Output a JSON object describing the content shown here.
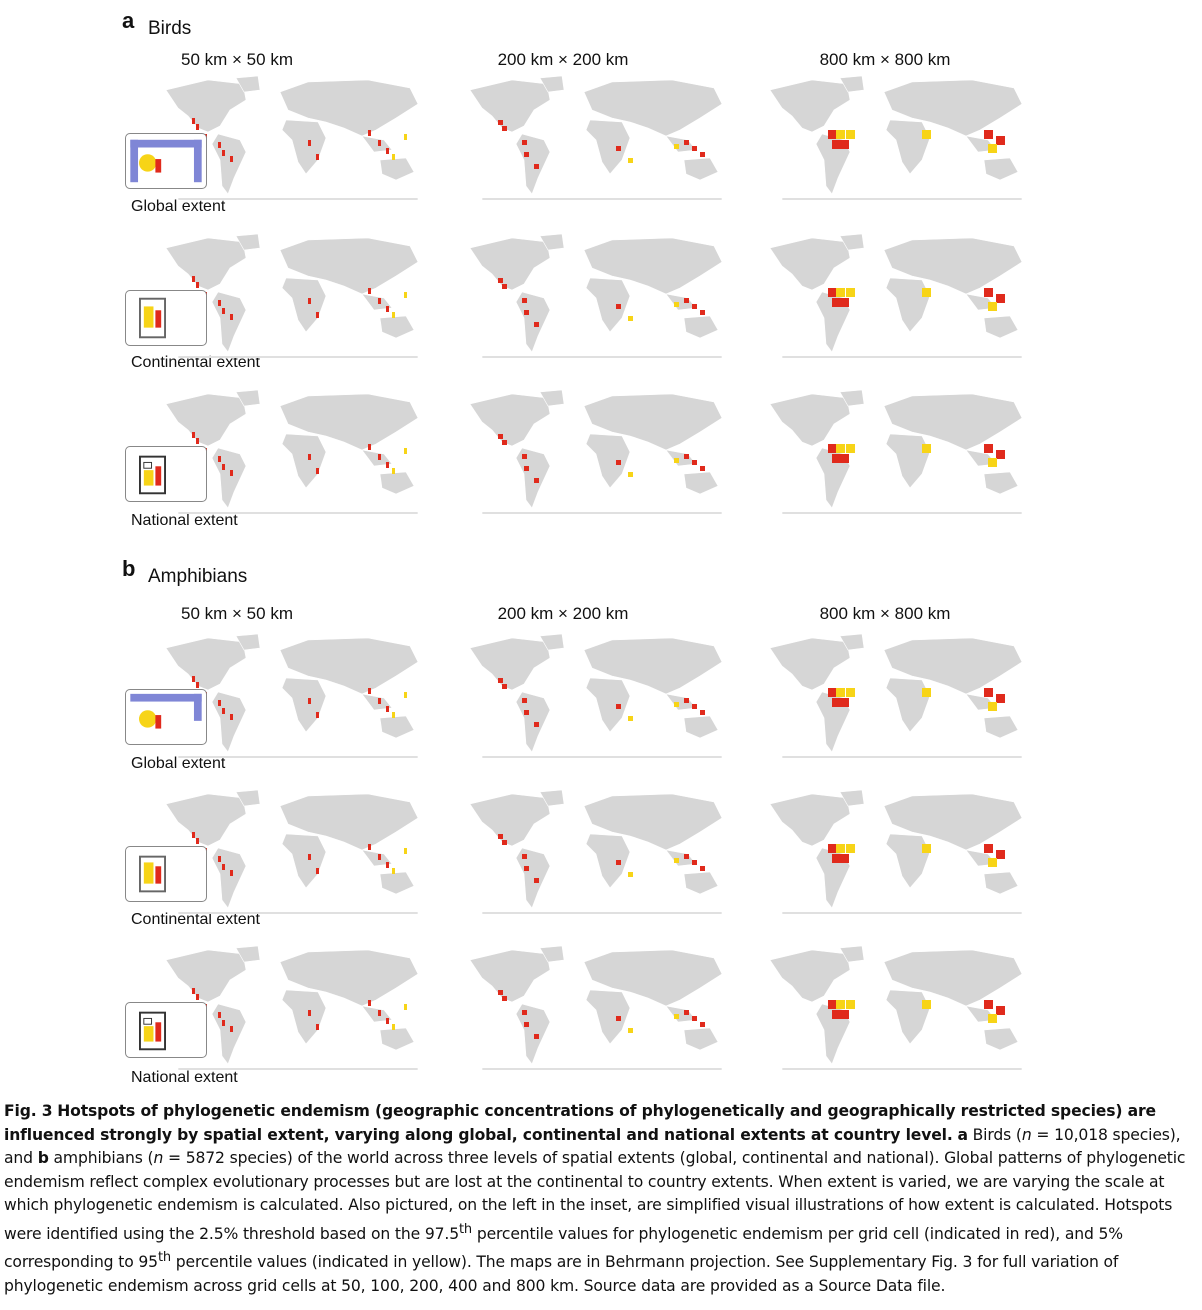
{
  "panels": [
    {
      "letter": "a",
      "title": "Birds",
      "columns": [
        "50 km × 50 km",
        "200 km × 200 km",
        "800 km × 800 km"
      ],
      "rows": [
        "Global extent",
        "Continental extent",
        "National extent"
      ]
    },
    {
      "letter": "b",
      "title": "Amphibians",
      "columns": [
        "50 km × 50 km",
        "200 km × 200 km",
        "800 km × 800 km"
      ],
      "rows": [
        "Global extent",
        "Continental extent",
        "National extent"
      ]
    }
  ],
  "colors": {
    "land": "#d6d6d6",
    "hotspot_2_5": "#e02a1c",
    "hotspot_5": "#f7d417",
    "inset_extent": "#7f86d6"
  },
  "caption": {
    "fig_label": "Fig. 3",
    "bold_title": "Hotspots of phylogenetic endemism (geographic concentrations of phylogenetically and geographically restricted species) are influenced strongly by spatial extent, varying along global, continental and national extents at country level.",
    "a_label": "a",
    "a_text_1": "Birds (",
    "a_n": "n",
    "a_text_2": " = 10,018 species), and ",
    "b_label": "b",
    "b_text_1": "amphibians (",
    "b_n": "n",
    "b_text_2": " = 5872 species) of the world across three levels of spatial extents (global, continental and national). Global patterns of phylogenetic endemism reflect complex evolutionary processes but are lost at the continental to country extents. When extent is varied, we are varying the scale at which phylogenetic endemism is calculated. Also pictured, on the left in the inset, are simplified visual illustrations of how extent is calculated. Hotspots were identified using the 2.5% threshold based on the 97.5",
    "sup1": "th",
    "text_3": " percentile values for phylogenetic endemism per grid cell (indicated in red), and 5% corresponding to 95",
    "sup2": "th",
    "text_4": " percentile values (indicated in yellow). The maps are in Behrmann projection. See Supplementary Fig. 3 for full variation of phylogenetic endemism across grid cells at 50, 100, 200, 400 and 800 km. Source data are provided as a Source Data file."
  }
}
